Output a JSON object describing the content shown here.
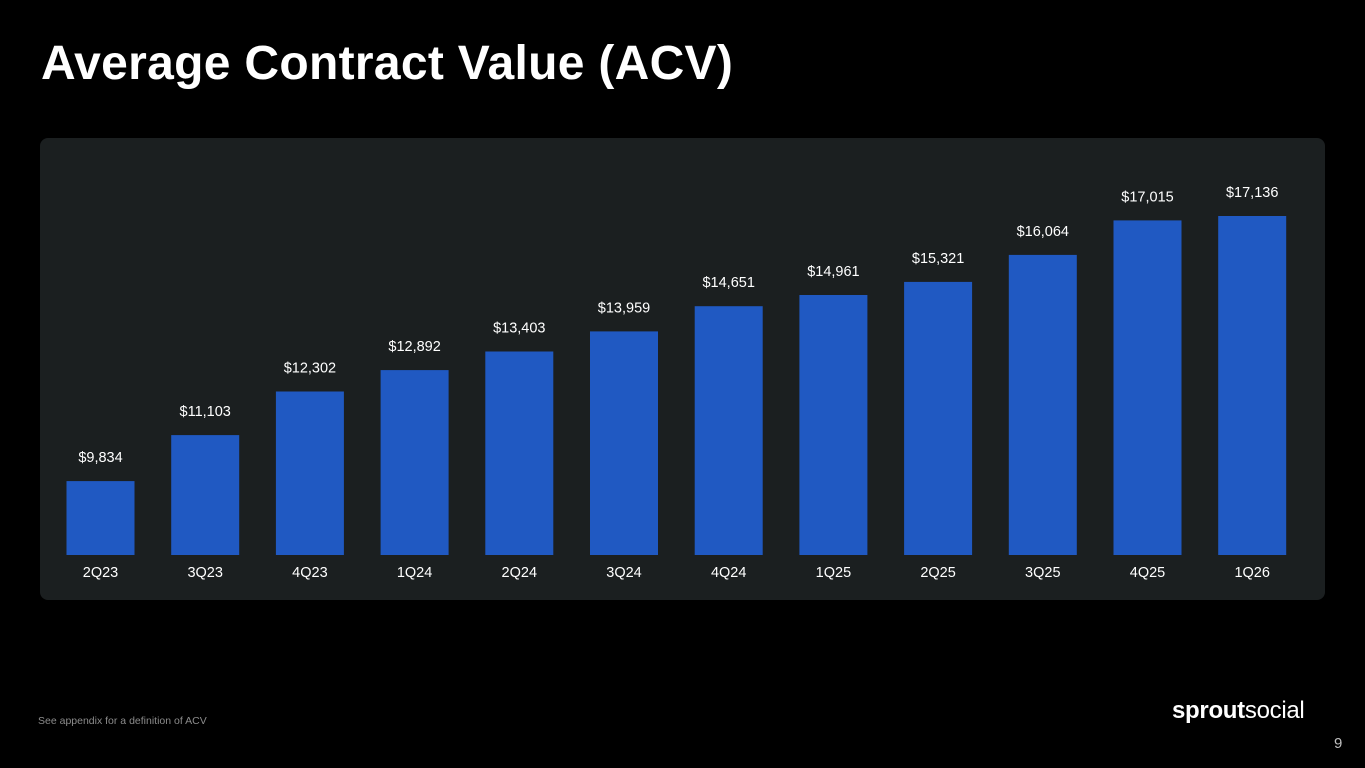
{
  "page": {
    "title": "Average Contract Value (ACV)",
    "footnote": "See appendix for a definition of ACV",
    "page_number": "9",
    "logo": {
      "bold": "sprout",
      "light": "social"
    }
  },
  "colors": {
    "background": "#000000",
    "panel": "#1b1f20",
    "bar": "#2059c2",
    "text": "#ffffff"
  },
  "chart_data": {
    "type": "bar",
    "title": "",
    "xlabel": "",
    "ylabel": "",
    "categories": [
      "2Q23",
      "3Q23",
      "4Q23",
      "1Q24",
      "2Q24",
      "3Q24",
      "4Q24",
      "1Q25",
      "2Q25",
      "3Q25",
      "4Q25",
      "1Q26"
    ],
    "values": [
      9834,
      11103,
      12302,
      12892,
      13403,
      13959,
      14651,
      14961,
      15321,
      16064,
      17015,
      17136
    ],
    "value_labels": [
      "$9,834",
      "$11,103",
      "$12,302",
      "$12,892",
      "$13,403",
      "$13,959",
      "$14,651",
      "$14,961",
      "$15,321",
      "$16,064",
      "$17,015",
      "$17,136"
    ],
    "ylim": [
      7800,
      17136
    ],
    "grid": false,
    "axis_visible": false
  }
}
